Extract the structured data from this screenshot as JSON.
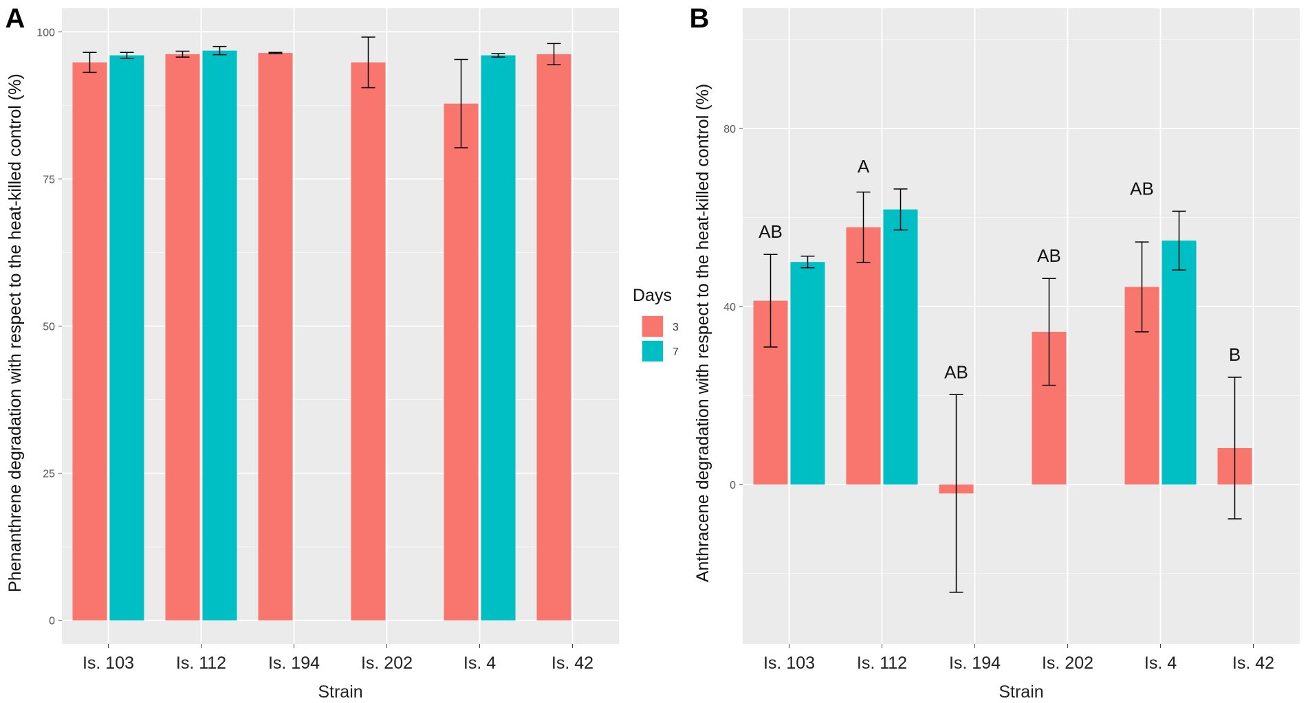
{
  "chart_data": [
    {
      "type": "bar",
      "panel": "A",
      "categories": [
        "Is. 103",
        "Is. 112",
        "Is. 194",
        "Is. 202",
        "Is. 4",
        "Is. 42"
      ],
      "series": [
        {
          "name": "3",
          "values": [
            94.8,
            96.2,
            96.4,
            94.8,
            87.8,
            96.2
          ],
          "errors": [
            1.7,
            0.5,
            0.1,
            4.3,
            7.5,
            1.8
          ]
        },
        {
          "name": "7",
          "values": [
            96.0,
            96.8,
            null,
            null,
            96.0,
            null
          ],
          "errors": [
            0.5,
            0.7,
            null,
            null,
            0.3,
            null
          ]
        }
      ],
      "xlabel": "Strain",
      "ylabel": "Phenanthrene degradation with respect to the heat-killed control (%)",
      "ylim": [
        -4,
        104
      ],
      "yticks": [
        0,
        25,
        50,
        75,
        100
      ],
      "annotations": []
    },
    {
      "type": "bar",
      "panel": "B",
      "categories": [
        "Is. 103",
        "Is. 112",
        "Is. 194",
        "Is. 202",
        "Is. 4",
        "Is. 42"
      ],
      "series": [
        {
          "name": "3",
          "values": [
            41.3,
            57.8,
            -2.0,
            34.3,
            44.4,
            8.2
          ],
          "errors": [
            10.4,
            7.9,
            22.2,
            12.0,
            10.1,
            15.9
          ]
        },
        {
          "name": "7",
          "values": [
            50.0,
            61.8,
            null,
            null,
            54.8,
            null
          ],
          "errors": [
            1.3,
            4.6,
            null,
            null,
            6.6,
            null
          ]
        }
      ],
      "xlabel": "Strain",
      "ylabel": "Anthracene degradation with respect to the heat-killed control (%)",
      "ylim": [
        -35.8,
        107
      ],
      "yticks": [
        0,
        40,
        80
      ],
      "annotations": [
        "AB",
        "A",
        "AB",
        "AB",
        "AB",
        "B"
      ]
    }
  ],
  "legend": {
    "title": "Days",
    "items": [
      {
        "label": "3",
        "color": "#F8766D"
      },
      {
        "label": "7",
        "color": "#00BFC4"
      }
    ]
  },
  "colors": {
    "series_3": "#F8766D",
    "series_7": "#00BFC4",
    "panel_bg": "#EBEBEB",
    "grid": "#FFFFFF"
  }
}
